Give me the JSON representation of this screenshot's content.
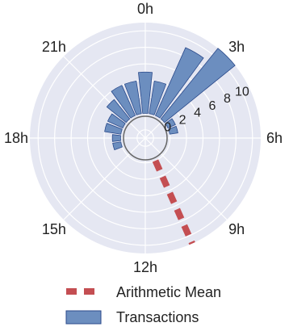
{
  "chart_data": {
    "type": "bar",
    "projection": "polar",
    "title": "",
    "theta_labels": [
      "0h",
      "3h",
      "6h",
      "9h",
      "12h",
      "15h",
      "18h",
      "21h"
    ],
    "radial_ticks": [
      "0",
      "2",
      "4",
      "6",
      "8",
      "10"
    ],
    "rlim": [
      -3,
      11
    ],
    "grid": true,
    "bar_color": "#6c8ebf",
    "bar_edge_color": "#2b4a8b",
    "background_color": "#e5e7f2",
    "mean_color": "#c44e52",
    "series": [
      {
        "name": "Transactions",
        "hours": [
          0,
          1,
          2,
          3,
          4,
          5,
          6,
          7,
          8,
          9,
          10,
          11,
          12,
          13,
          14,
          15,
          16,
          17,
          18,
          19,
          20,
          21,
          22,
          23
        ],
        "values": [
          5,
          4,
          9,
          11,
          1,
          1,
          0,
          0,
          0,
          0,
          0,
          0,
          0,
          0,
          0,
          0,
          0,
          1,
          1,
          2,
          2,
          3,
          4,
          4
        ]
      }
    ],
    "mean": {
      "name": "Arithmetic Mean",
      "hour": 10.4
    },
    "legend": {
      "position": "bottom",
      "entries": [
        "Arithmetic Mean",
        "Transactions"
      ]
    }
  }
}
